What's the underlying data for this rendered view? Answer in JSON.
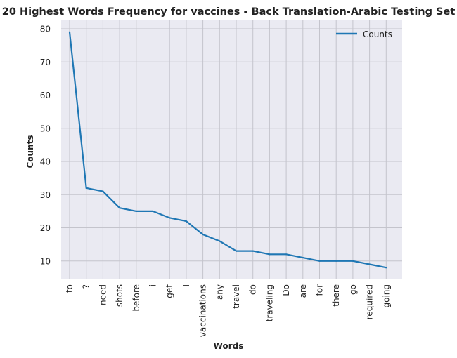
{
  "chart_data": {
    "type": "line",
    "title": "20 Highest Words Frequency for vaccines - Back Translation-Arabic Testing Set",
    "xlabel": "Words",
    "ylabel": "Counts",
    "categories": [
      "to",
      "?",
      "need",
      "shots",
      "before",
      "i",
      "get",
      "I",
      "vaccinations",
      "any",
      "travel",
      "do",
      "traveling",
      "Do",
      "are",
      "for",
      "there",
      "go",
      "required",
      "going"
    ],
    "series": [
      {
        "name": "Counts",
        "values": [
          79,
          32,
          31,
          26,
          25,
          25,
          23,
          22,
          18,
          16,
          13,
          13,
          12,
          12,
          11,
          10,
          10,
          10,
          9,
          8
        ]
      }
    ],
    "yticks": [
      10,
      20,
      30,
      40,
      50,
      60,
      70,
      80
    ],
    "ylim": [
      4.45,
      82.55
    ],
    "grid": true,
    "legend": "top-right",
    "colors": {
      "line": "#1f77b4",
      "plot_bg": "#eaeaf2",
      "grid": "#c4c4cc",
      "text": "#222222"
    }
  }
}
